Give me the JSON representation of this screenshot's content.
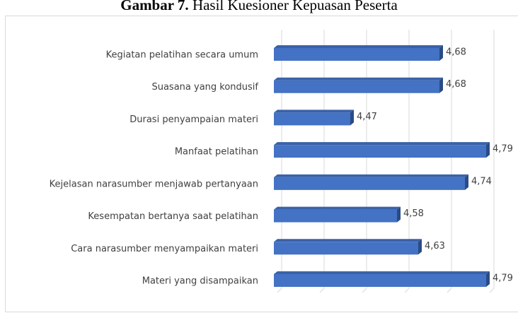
{
  "chart_data": {
    "type": "bar",
    "orientation": "horizontal",
    "title_label": "Gambar 7.",
    "title": "Hasil Kuesioner Kepuasan Peserta",
    "categories": [
      "Kegiatan pelatihan secara umum",
      "Suasana yang kondusif",
      "Durasi penyampaian materi",
      "Manfaat pelatihan",
      "Kejelasan narasumber menjawab pertanyaan",
      "Kesempatan bertanya saat pelatihan",
      "Cara narasumber menyampaikan materi",
      "Materi yang disampaikan"
    ],
    "values": [
      4.68,
      4.68,
      4.47,
      4.79,
      4.74,
      4.58,
      4.63,
      4.79
    ],
    "value_labels": [
      "4,68",
      "4,68",
      "4,47",
      "4,79",
      "4,74",
      "4,58",
      "4,63",
      "4,79"
    ],
    "color": "#4472c4",
    "xlim": [
      4.3,
      4.8
    ],
    "xticks": [
      4.3,
      4.4,
      4.5,
      4.6,
      4.7,
      4.8
    ],
    "grid": true
  }
}
